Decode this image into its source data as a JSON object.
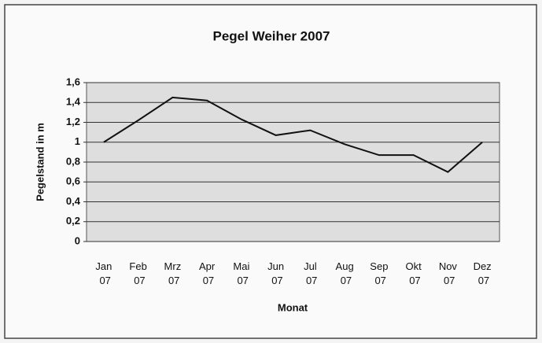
{
  "chart_data": {
    "type": "line",
    "title": "Pegel Weiher 2007",
    "xlabel": "Monat",
    "ylabel": "Pegelstand in m",
    "categories": [
      "Jan 07",
      "Feb 07",
      "Mrz 07",
      "Apr 07",
      "Mai 07",
      "Jun 07",
      "Jul 07",
      "Aug 07",
      "Sep 07",
      "Okt 07",
      "Nov 07",
      "Dez 07"
    ],
    "series": [
      {
        "color": "#111111",
        "values": [
          1.0,
          1.22,
          1.45,
          1.42,
          1.23,
          1.07,
          1.12,
          0.98,
          0.87,
          0.87,
          0.7,
          1.0
        ]
      }
    ],
    "ylim": [
      0,
      1.6
    ],
    "yticks": [
      0,
      {
        "value": 0.2,
        "label": "0,2"
      },
      {
        "value": 0.4,
        "label": "0,4"
      },
      {
        "value": 0.6,
        "label": "0,6"
      },
      {
        "value": 0.8,
        "label": "0,8"
      },
      1,
      {
        "value": 1.2,
        "label": "1,2"
      },
      {
        "value": 1.4,
        "label": "1,4"
      },
      {
        "value": 1.6,
        "label": "1,6"
      }
    ],
    "grid": true
  }
}
